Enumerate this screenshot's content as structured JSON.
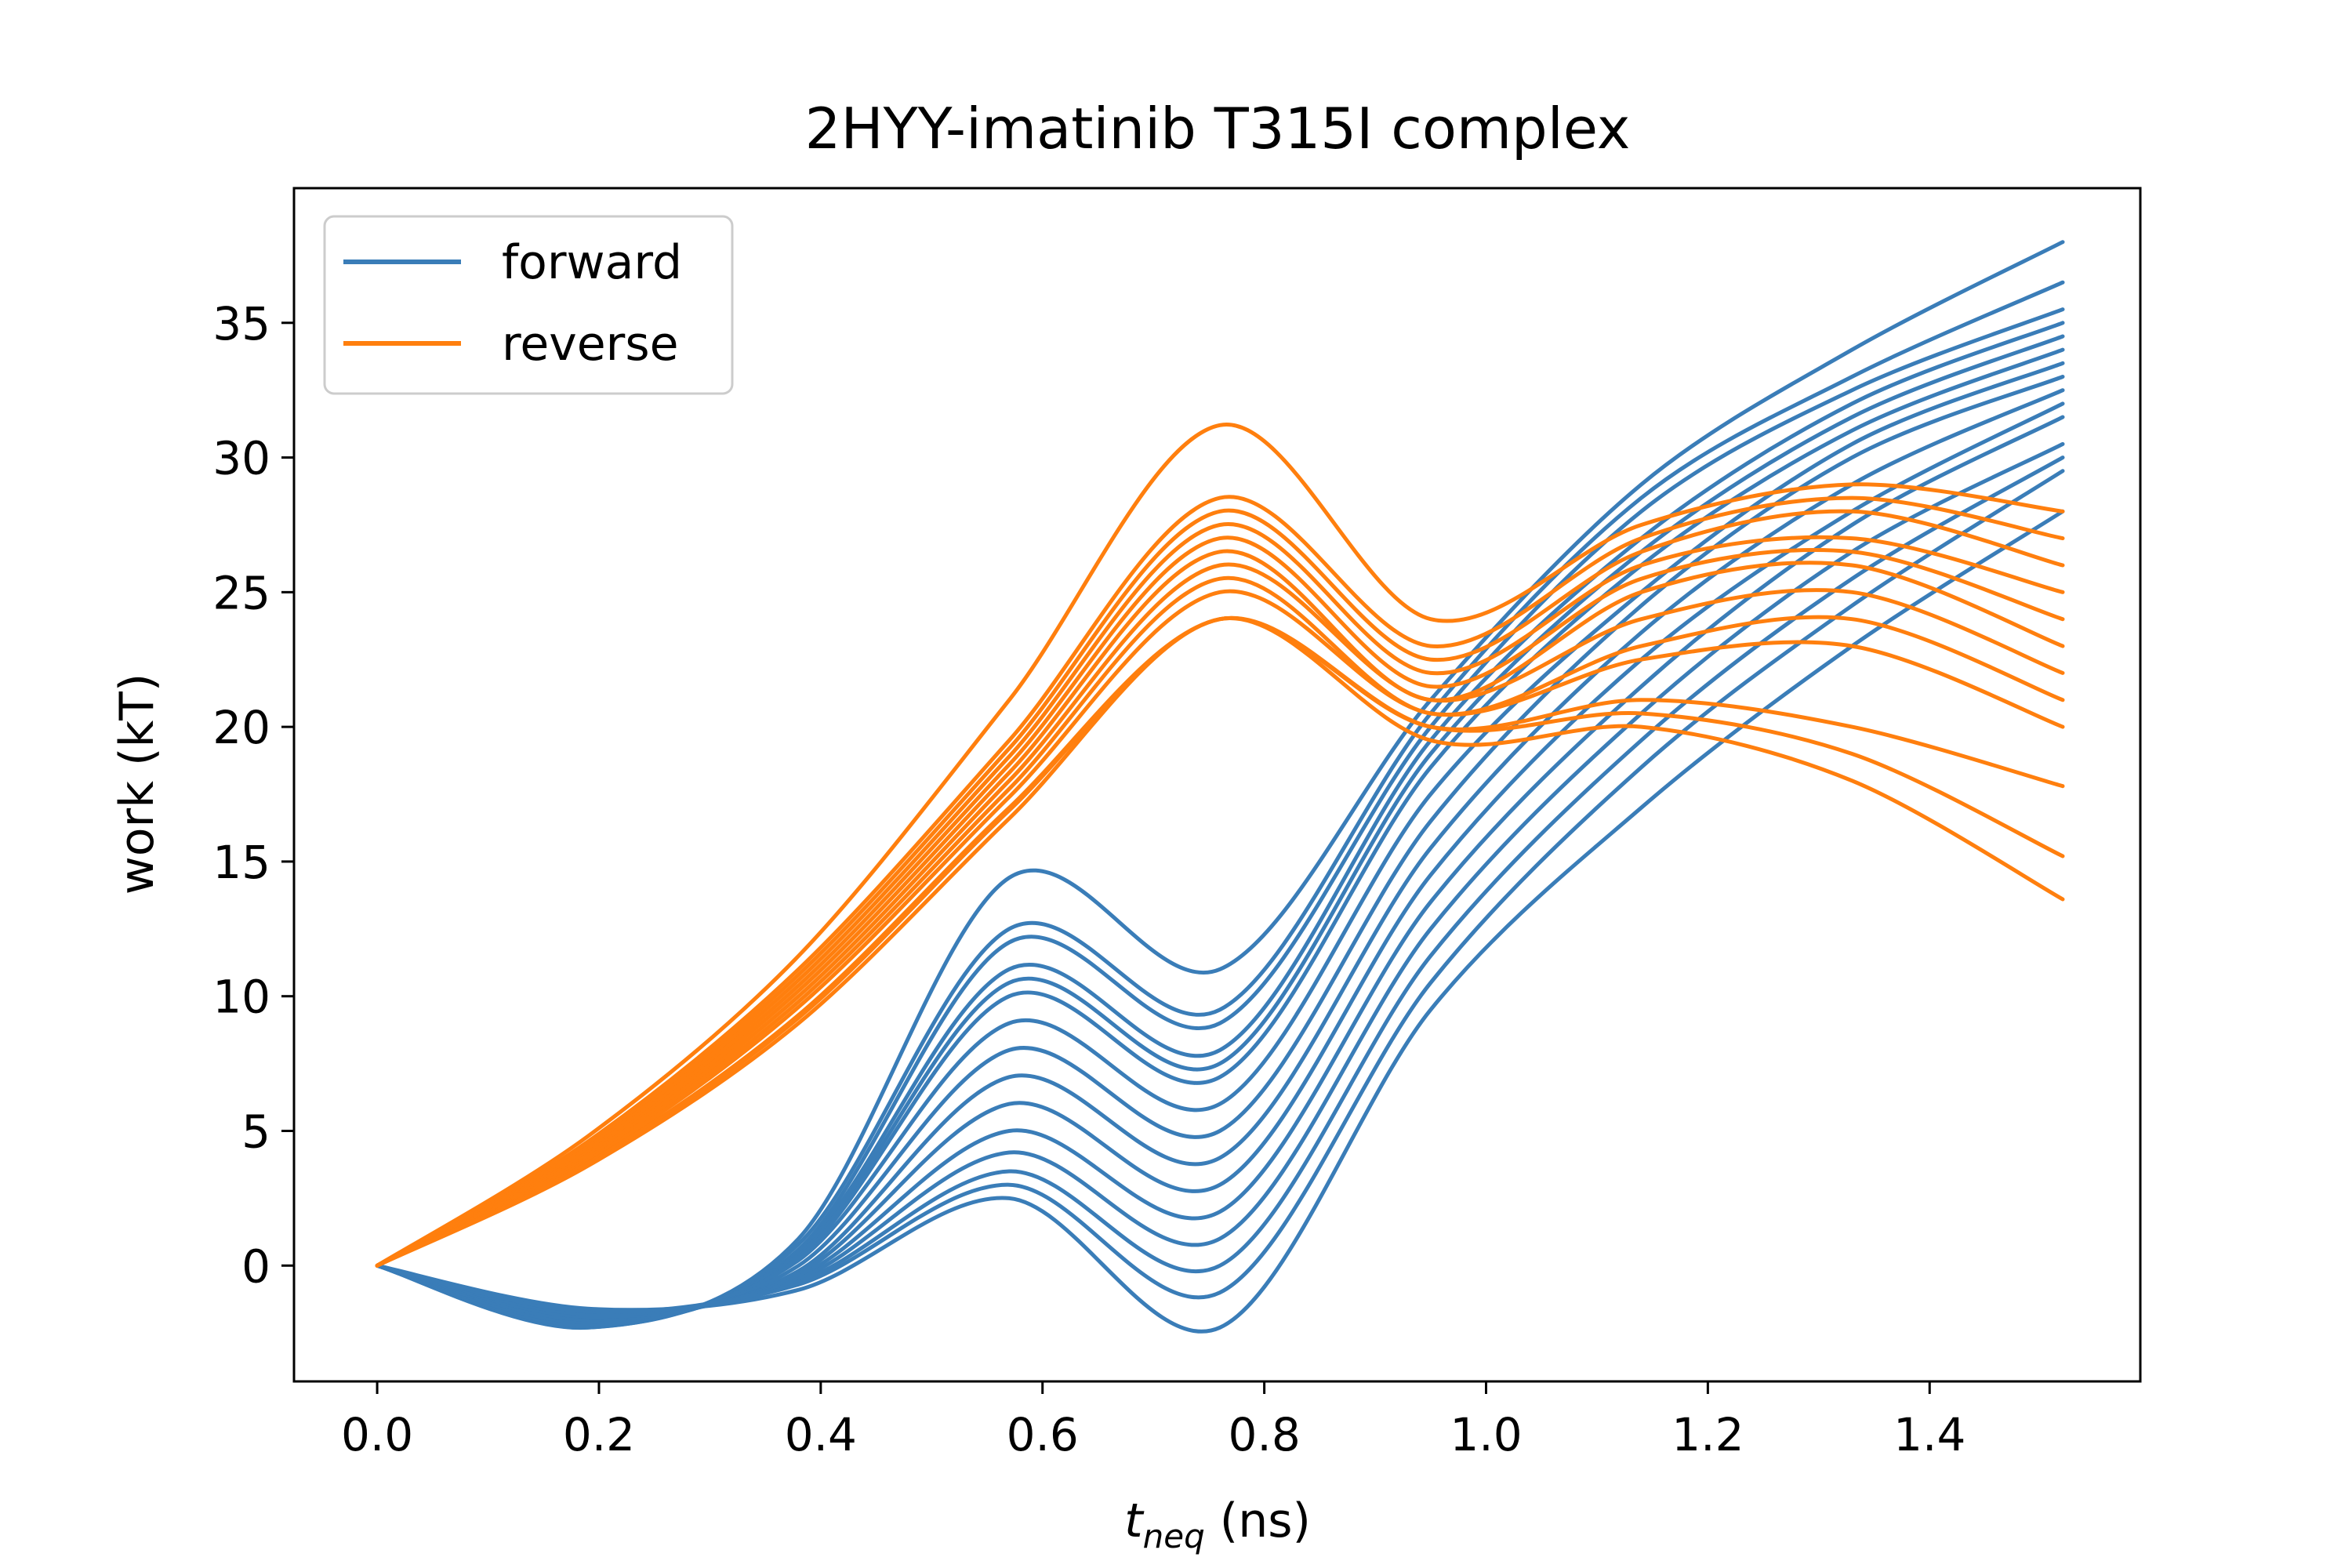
{
  "chart_data": {
    "type": "line",
    "title": "2HYY-imatinib T315I complex",
    "xlabel_main": "t",
    "xlabel_sub": "neq",
    "xlabel_unit": " (ns)",
    "ylabel": "work (kT)",
    "xlim": [
      -0.075,
      1.59
    ],
    "ylim": [
      -4.3,
      40.0
    ],
    "xticks": [
      0.0,
      0.2,
      0.4,
      0.6,
      0.8,
      1.0,
      1.2,
      1.4
    ],
    "xtick_labels": [
      "0.0",
      "0.2",
      "0.4",
      "0.6",
      "0.8",
      "1.0",
      "1.2",
      "1.4"
    ],
    "yticks": [
      0,
      5,
      10,
      15,
      20,
      25,
      30,
      35
    ],
    "ytick_labels": [
      "0",
      "5",
      "10",
      "15",
      "20",
      "25",
      "30",
      "35"
    ],
    "grid": false,
    "legend_position": "top-left",
    "x": [
      0.0,
      0.19,
      0.38,
      0.57,
      0.76,
      0.95,
      1.14,
      1.33,
      1.52
    ],
    "series": [
      {
        "name": "forward",
        "color": "#3a7db8",
        "trajectories": [
          [
            0,
            -2.3,
            1.0,
            14.4,
            11.0,
            21.0,
            29.0,
            34.0,
            38.0
          ],
          [
            0,
            -2.3,
            0.8,
            12.5,
            9.5,
            20.5,
            28.5,
            33.0,
            36.5
          ],
          [
            0,
            -2.2,
            0.6,
            12.0,
            9.0,
            20.0,
            28.0,
            32.5,
            35.5
          ],
          [
            0,
            -2.2,
            0.5,
            11.0,
            8.0,
            19.5,
            27.0,
            32.0,
            35.0
          ],
          [
            0,
            -2.1,
            0.4,
            10.5,
            7.5,
            19.0,
            26.5,
            31.5,
            34.5
          ],
          [
            0,
            -2.1,
            0.3,
            10.0,
            7.0,
            18.5,
            26.0,
            31.0,
            34.0
          ],
          [
            0,
            -2.0,
            0.2,
            9.0,
            6.0,
            17.5,
            25.0,
            30.5,
            33.5
          ],
          [
            0,
            -2.0,
            0.0,
            8.0,
            5.0,
            16.5,
            24.5,
            30.0,
            33.0
          ],
          [
            0,
            -1.9,
            -0.2,
            7.0,
            4.0,
            15.5,
            23.5,
            29.0,
            32.5
          ],
          [
            0,
            -1.9,
            -0.3,
            6.0,
            3.0,
            14.5,
            22.5,
            28.0,
            32.0
          ],
          [
            0,
            -1.8,
            -0.4,
            5.0,
            2.0,
            13.5,
            21.5,
            27.5,
            31.5
          ],
          [
            0,
            -1.8,
            -0.5,
            4.2,
            1.0,
            12.5,
            20.5,
            26.5,
            30.5
          ],
          [
            0,
            -1.7,
            -0.6,
            3.5,
            0.0,
            11.5,
            19.5,
            25.5,
            30.0
          ],
          [
            0,
            -1.7,
            -0.7,
            3.0,
            -1.0,
            10.5,
            18.5,
            24.5,
            29.5
          ],
          [
            0,
            -1.6,
            -0.9,
            2.5,
            -2.3,
            9.5,
            17.0,
            23.0,
            28.0
          ]
        ]
      },
      {
        "name": "reverse",
        "color": "#ff7f0e",
        "trajectories": [
          [
            0,
            4.8,
            11.5,
            21.0,
            31.2,
            24.0,
            27.5,
            29.0,
            28.0
          ],
          [
            0,
            4.6,
            11.0,
            19.5,
            28.5,
            23.0,
            27.0,
            28.5,
            27.0
          ],
          [
            0,
            4.5,
            10.8,
            19.2,
            28.0,
            22.5,
            26.5,
            28.0,
            26.0
          ],
          [
            0,
            4.4,
            10.6,
            18.9,
            27.5,
            22.0,
            26.0,
            27.0,
            25.0
          ],
          [
            0,
            4.3,
            10.4,
            18.6,
            27.0,
            21.5,
            25.5,
            26.5,
            24.0
          ],
          [
            0,
            4.2,
            10.2,
            18.3,
            26.5,
            21.0,
            25.0,
            26.0,
            23.0
          ],
          [
            0,
            4.1,
            10.0,
            18.0,
            26.0,
            21.0,
            24.0,
            25.0,
            22.0
          ],
          [
            0,
            4.0,
            9.8,
            17.7,
            25.5,
            20.5,
            23.0,
            24.0,
            21.0
          ],
          [
            0,
            3.9,
            9.6,
            17.4,
            25.0,
            20.5,
            22.5,
            23.0,
            20.0
          ],
          [
            0,
            3.8,
            9.3,
            17.0,
            24.0,
            20.0,
            21.0,
            20.0,
            17.8
          ],
          [
            0,
            3.8,
            9.2,
            16.9,
            24.0,
            20.0,
            20.5,
            19.0,
            15.2
          ],
          [
            0,
            3.7,
            9.0,
            16.6,
            24.0,
            19.5,
            20.0,
            18.0,
            13.6
          ]
        ]
      }
    ]
  }
}
